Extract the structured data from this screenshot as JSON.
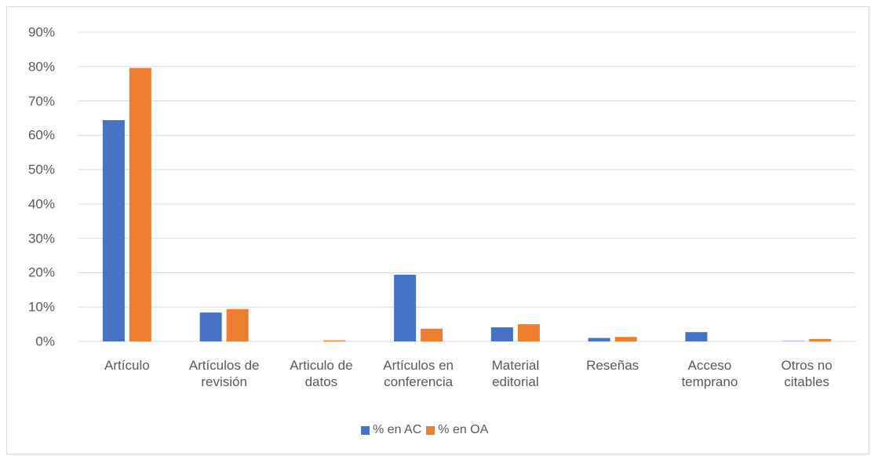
{
  "chart_data": {
    "type": "bar",
    "categories": [
      "Artículo",
      "Artículos de revisión",
      "Articulo de datos",
      "Artículos en conferencia",
      "Material editorial",
      "Reseñas",
      "Acceso temprano",
      "Otros no citables"
    ],
    "series": [
      {
        "name": "% en AC",
        "color": "#4472c4",
        "values": [
          64.4,
          8.4,
          0,
          19.4,
          4.1,
          1.0,
          2.7,
          0.1
        ]
      },
      {
        "name": "% en OA",
        "color": "#ed7d31",
        "values": [
          79.6,
          9.4,
          0.3,
          3.7,
          5.0,
          1.3,
          0,
          0.7
        ]
      }
    ],
    "ylim": [
      0,
      90
    ],
    "yticks": [
      {
        "value": 0,
        "label": "0%"
      },
      {
        "value": 10,
        "label": "10%"
      },
      {
        "value": 20,
        "label": "20%"
      },
      {
        "value": 30,
        "label": "30%"
      },
      {
        "value": 40,
        "label": "40%"
      },
      {
        "value": 50,
        "label": "50%"
      },
      {
        "value": 60,
        "label": "60%"
      },
      {
        "value": 70,
        "label": "70%"
      },
      {
        "value": 80,
        "label": "80%"
      },
      {
        "value": 90,
        "label": "90%"
      }
    ],
    "grid": true,
    "legend": "bottom"
  }
}
